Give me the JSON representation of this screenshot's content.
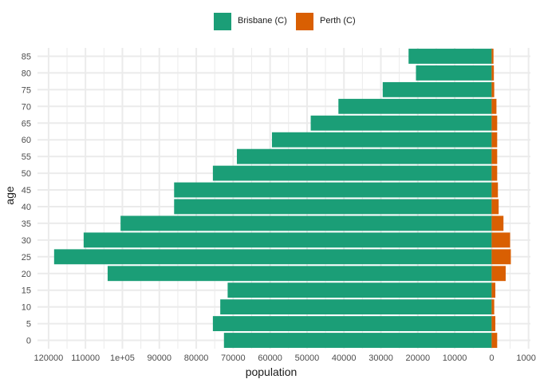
{
  "chart_data": {
    "type": "bar",
    "orientation": "horizontal",
    "xlabel": "population",
    "ylabel": "age",
    "categories": [
      "0",
      "5",
      "10",
      "15",
      "20",
      "25",
      "30",
      "35",
      "40",
      "45",
      "50",
      "55",
      "60",
      "65",
      "70",
      "75",
      "80",
      "85"
    ],
    "series": [
      {
        "name": "Brisbane (C)",
        "color": "#1b9e77",
        "values": [
          72500,
          75500,
          73500,
          71500,
          104000,
          118500,
          110500,
          100500,
          86000,
          86000,
          75500,
          69000,
          59500,
          49000,
          41500,
          29500,
          20500,
          22500
        ]
      },
      {
        "name": "Perth (C)",
        "color": "#d95f02",
        "values": [
          1500,
          1000,
          700,
          1000,
          3800,
          5200,
          5000,
          3200,
          1900,
          1700,
          1500,
          1500,
          1500,
          1500,
          1300,
          700,
          600,
          500
        ]
      }
    ],
    "x_ticks": [
      "120000",
      "110000",
      "1e+05",
      "90000",
      "80000",
      "70000",
      "60000",
      "50000",
      "40000",
      "30000",
      "20000",
      "10000",
      "0",
      "10000"
    ],
    "x_tick_values": [
      -120000,
      -110000,
      -100000,
      -90000,
      -80000,
      -70000,
      -60000,
      -50000,
      -40000,
      -30000,
      -20000,
      -10000,
      0,
      10000
    ],
    "xlim": [
      -123000,
      10500
    ],
    "grid": true,
    "legend_position": "top",
    "background": "#ffffff",
    "grid_color": "#ebebeb"
  }
}
